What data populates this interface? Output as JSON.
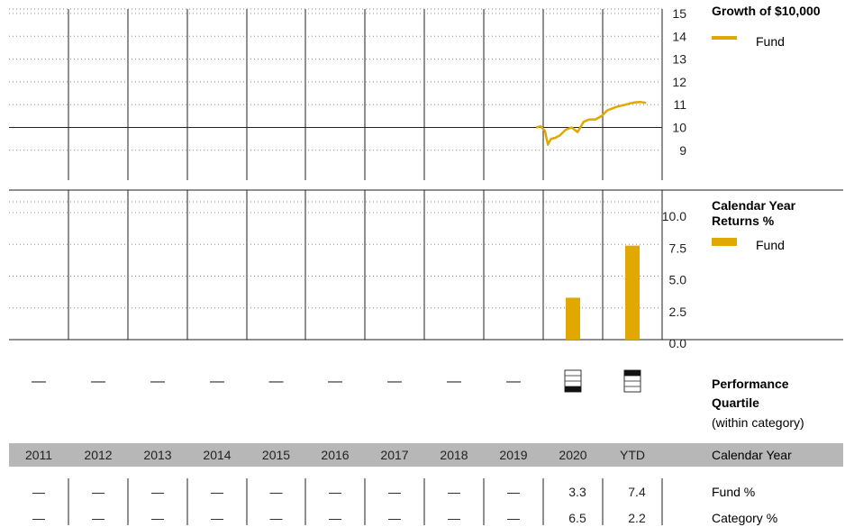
{
  "colors": {
    "fund": "#e0a800",
    "band": "#b7b7b7",
    "grid": "#8a8a8a",
    "text": "#222222"
  },
  "years": [
    "2011",
    "2012",
    "2013",
    "2014",
    "2015",
    "2016",
    "2017",
    "2018",
    "2019",
    "2020",
    "YTD"
  ],
  "growth": {
    "title": "Growth of $10,000",
    "legend_fund": "Fund",
    "ticks": [
      "15",
      "14",
      "13",
      "12",
      "11",
      "10",
      "9"
    ]
  },
  "returns": {
    "title_line1": "Calendar Year",
    "title_line2": "Returns %",
    "legend_fund": "Fund",
    "ticks": [
      "10.0",
      "7.5",
      "5.0",
      "2.5",
      "0.0"
    ]
  },
  "quartile": {
    "title_line1": "Performance",
    "title_line2": "Quartile",
    "subtitle": "(within category)",
    "dash": "—",
    "icon_name": "quartile-box-icon",
    "values": [
      null,
      null,
      null,
      null,
      null,
      null,
      null,
      null,
      null,
      4,
      1
    ]
  },
  "band_label": "Calendar Year",
  "table": {
    "rows": [
      {
        "label": "Fund %",
        "values": [
          "—",
          "—",
          "—",
          "—",
          "—",
          "—",
          "—",
          "—",
          "—",
          "3.3",
          "7.4"
        ]
      },
      {
        "label": "Category %",
        "values": [
          "—",
          "—",
          "—",
          "—",
          "—",
          "—",
          "—",
          "—",
          "—",
          "6.5",
          "2.2"
        ]
      }
    ]
  },
  "chart_data": [
    {
      "type": "line",
      "title": "Growth of $10,000",
      "ylim": [
        9,
        15
      ],
      "ylabel": "",
      "yscale_ticks": [
        15,
        14,
        13,
        12,
        11,
        10,
        9
      ],
      "x_range": [
        "2011",
        "YTD"
      ],
      "series": [
        {
          "name": "Fund",
          "x": [
            2020.0,
            2020.08,
            2020.15,
            2020.2,
            2020.25,
            2020.33,
            2020.4,
            2020.5,
            2020.6,
            2020.7,
            2020.8,
            2020.9,
            2021.0,
            2021.1,
            2021.2,
            2021.35,
            2021.5,
            2021.65,
            2021.75,
            2021.85
          ],
          "y": [
            10.0,
            10.05,
            9.85,
            9.25,
            9.5,
            9.55,
            9.65,
            9.9,
            10.0,
            9.8,
            10.25,
            10.35,
            10.35,
            10.5,
            10.75,
            10.9,
            11.0,
            11.1,
            11.12,
            11.08
          ]
        }
      ],
      "grid": true,
      "legend": "right"
    },
    {
      "type": "bar",
      "title": "Calendar Year Returns %",
      "categories": [
        "2011",
        "2012",
        "2013",
        "2014",
        "2015",
        "2016",
        "2017",
        "2018",
        "2019",
        "2020",
        "YTD"
      ],
      "series": [
        {
          "name": "Fund",
          "values": [
            null,
            null,
            null,
            null,
            null,
            null,
            null,
            null,
            null,
            3.3,
            7.4
          ]
        }
      ],
      "ylim": [
        0,
        10
      ],
      "yscale_ticks": [
        10.0,
        7.5,
        5.0,
        2.5,
        0.0
      ],
      "grid": true,
      "legend": "right"
    }
  ]
}
